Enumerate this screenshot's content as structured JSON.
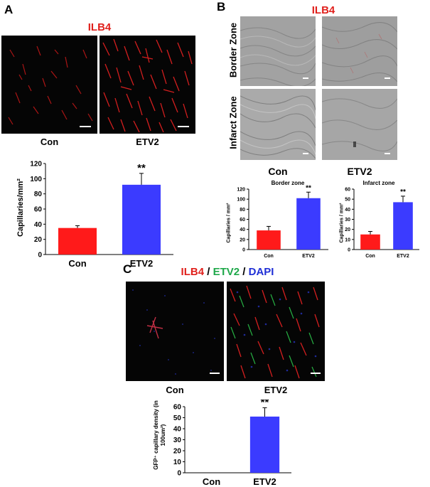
{
  "panels": {
    "A": {
      "letter": "A",
      "stain": "ILB4",
      "image_labels": [
        "Con",
        "ETV2"
      ]
    },
    "B": {
      "letter": "B",
      "stain": "ILB4",
      "row_labels": [
        "Border Zone",
        "Infarct Zone"
      ],
      "image_labels": [
        "Con",
        "ETV2"
      ]
    },
    "C": {
      "letter": "C",
      "stain_parts": [
        "ILB4",
        " / ",
        "ETV2",
        " / ",
        "DAPI"
      ],
      "image_labels": [
        "Con",
        "ETV2"
      ]
    }
  },
  "colors": {
    "con_bar": "#ff1a1a",
    "etv2_bar": "#3b3bff",
    "ilb4": "#e0201c",
    "etv2_stain": "#1fa84a",
    "dapi": "#1f2fd6"
  },
  "chart_data": [
    {
      "id": "A",
      "type": "bar",
      "categories": [
        "Con",
        "ETV2"
      ],
      "values": [
        35,
        92
      ],
      "errors": [
        3,
        15
      ],
      "significance": [
        "",
        "**"
      ],
      "ylabel": "Capillaries/mm²",
      "ylim": [
        0,
        120
      ],
      "yticks": [
        0,
        20,
        40,
        60,
        80,
        100,
        120
      ]
    },
    {
      "id": "B-border",
      "type": "bar",
      "title": "Border zone",
      "categories": [
        "Con",
        "ETV2"
      ],
      "values": [
        38,
        102
      ],
      "errors": [
        8,
        12
      ],
      "significance": [
        "",
        "**"
      ],
      "ylabel": "Capillaries / mm²",
      "ylim": [
        0,
        120
      ],
      "yticks": [
        0,
        20,
        40,
        60,
        80,
        100,
        120
      ]
    },
    {
      "id": "B-infarct",
      "type": "bar",
      "title": "Infarct zone",
      "categories": [
        "Con",
        "ETV2"
      ],
      "values": [
        15,
        47
      ],
      "errors": [
        3,
        6
      ],
      "significance": [
        "",
        "**"
      ],
      "ylabel": "Capillaries / mm²",
      "ylim": [
        0,
        60
      ],
      "yticks": [
        0,
        10,
        20,
        30,
        40,
        50,
        60
      ]
    },
    {
      "id": "C",
      "type": "bar",
      "categories": [
        "Con",
        "ETV2"
      ],
      "values": [
        0,
        51
      ],
      "errors": [
        0,
        8
      ],
      "significance": [
        "",
        "**"
      ],
      "ylabel": "GFP⁺ capillary density (in 100um²)",
      "ylim": [
        0,
        60
      ],
      "yticks": [
        0,
        10,
        20,
        30,
        40,
        50,
        60
      ]
    }
  ]
}
